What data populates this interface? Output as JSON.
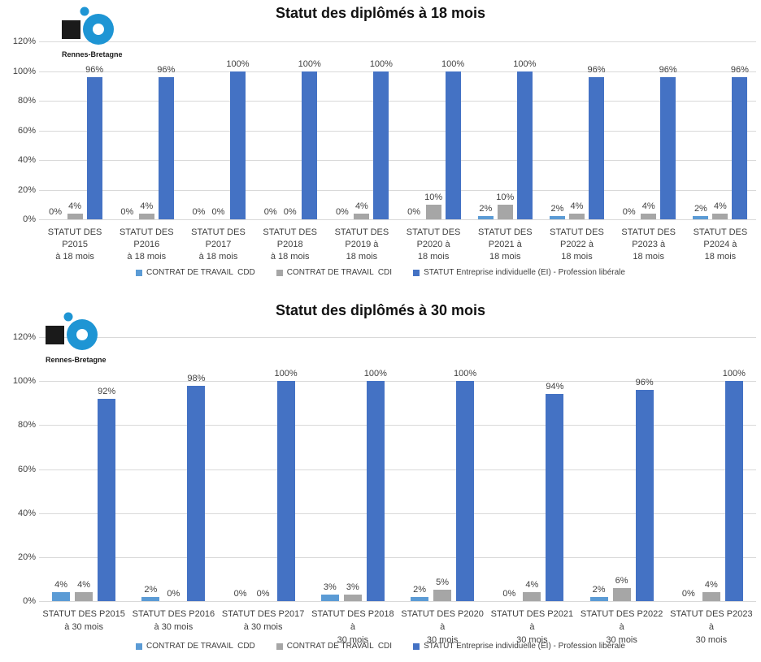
{
  "logo": {
    "text": "Rennes-Bretagne",
    "black_color": "#1a1a1a",
    "blue_color": "#1e95d4"
  },
  "colors": {
    "grid": "#d9d9d9",
    "text": "#404040",
    "title": "#111111",
    "background": "#ffffff",
    "cdd_blue": "#5b9bd5",
    "cdi_gray": "#a6a6a6",
    "ei_blue": "#4472c4"
  },
  "chart_data": [
    {
      "type": "bar",
      "title": "Statut des diplômés à 18 mois",
      "xlabel": "",
      "ylabel": "",
      "ylim": [
        0,
        120
      ],
      "y_ticks": [
        0,
        20,
        40,
        60,
        80,
        100,
        120
      ],
      "y_tick_labels": [
        "0%",
        "20%",
        "40%",
        "60%",
        "80%",
        "100%",
        "120%"
      ],
      "grid": true,
      "legend_position": "bottom",
      "data_labels": "percent",
      "categories": [
        "STATUT DES P2015 à 18 mois",
        "STATUT DES P2016 à 18 mois",
        "STATUT DES P2017 à 18 mois",
        "STATUT DES P2018 à 18 mois",
        "STATUT DES P2019 à 18 mois",
        "STATUT DES P2020 à 18 mois",
        "STATUT DES P2021 à 18 mois",
        "STATUT DES P2022 à 18 mois",
        "STATUT DES P2023 à 18 mois",
        "STATUT DES P2024 à 18 mois"
      ],
      "categories_lines": [
        [
          "STATUT DES",
          "P2015",
          "à 18 mois"
        ],
        [
          "STATUT DES",
          "P2016",
          "à 18 mois"
        ],
        [
          "STATUT DES",
          "P2017",
          "à 18 mois"
        ],
        [
          "STATUT DES",
          "P2018",
          "à 18 mois"
        ],
        [
          "STATUT DES",
          "P2019 à",
          "18 mois"
        ],
        [
          "STATUT DES",
          "P2020 à",
          "18 mois"
        ],
        [
          "STATUT DES",
          "P2021 à",
          "18 mois"
        ],
        [
          "STATUT DES",
          "P2022 à",
          "18 mois"
        ],
        [
          "STATUT DES",
          "P2023 à",
          "18 mois"
        ],
        [
          "STATUT DES",
          "P2024 à",
          "18 mois"
        ]
      ],
      "series": [
        {
          "name": "CONTRAT DE TRAVAIL  CDD",
          "color": "#5b9bd5",
          "values": [
            0,
            0,
            0,
            0,
            0,
            0,
            2,
            2,
            0,
            2
          ]
        },
        {
          "name": "CONTRAT DE TRAVAIL  CDI",
          "color": "#a6a6a6",
          "values": [
            4,
            4,
            0,
            0,
            4,
            10,
            10,
            4,
            4,
            4
          ]
        },
        {
          "name": "STATUT Entreprise individuelle (EI) - Profession libérale",
          "color": "#4472c4",
          "values": [
            96,
            96,
            100,
            100,
            100,
            100,
            100,
            96,
            96,
            96
          ]
        }
      ]
    },
    {
      "type": "bar",
      "title": "Statut des diplômés à 30 mois",
      "xlabel": "",
      "ylabel": "",
      "ylim": [
        0,
        120
      ],
      "y_ticks": [
        0,
        20,
        40,
        60,
        80,
        100,
        120
      ],
      "y_tick_labels": [
        "0%",
        "20%",
        "40%",
        "60%",
        "80%",
        "100%",
        "120%"
      ],
      "grid": true,
      "legend_position": "bottom",
      "data_labels": "percent",
      "categories": [
        "STATUT DES P2015 à 30 mois",
        "STATUT DES P2016 à 30 mois",
        "STATUT DES P2017 à 30 mois",
        "STATUT DES P2018 à 30 mois",
        "STATUT DES P2020 à 30 mois",
        "STATUT DES P2021 à 30 mois",
        "STATUT DES P2022 à 30 mois",
        "STATUT DES P2023 à 30 mois"
      ],
      "categories_lines": [
        [
          "STATUT DES P2015",
          "à 30 mois"
        ],
        [
          "STATUT DES P2016",
          "à 30 mois"
        ],
        [
          "STATUT DES P2017",
          "à 30 mois"
        ],
        [
          "STATUT DES P2018 à",
          "30 mois"
        ],
        [
          "STATUT DES P2020 à",
          "30 mois"
        ],
        [
          "STATUT DES P2021 à",
          "30 mois"
        ],
        [
          "STATUT DES P2022 à",
          "30 mois"
        ],
        [
          "STATUT DES P2023 à",
          "30 mois"
        ]
      ],
      "series": [
        {
          "name": "CONTRAT DE TRAVAIL  CDD",
          "color": "#5b9bd5",
          "values": [
            4,
            2,
            0,
            3,
            2,
            0,
            2,
            0
          ]
        },
        {
          "name": "CONTRAT DE TRAVAIL  CDI",
          "color": "#a6a6a6",
          "values": [
            4,
            0,
            0,
            3,
            5,
            4,
            6,
            4
          ]
        },
        {
          "name": "STATUT Entreprise individuelle (EI) - Profession libérale",
          "color": "#4472c4",
          "values": [
            92,
            98,
            100,
            100,
            100,
            94,
            96,
            100
          ]
        }
      ]
    }
  ]
}
